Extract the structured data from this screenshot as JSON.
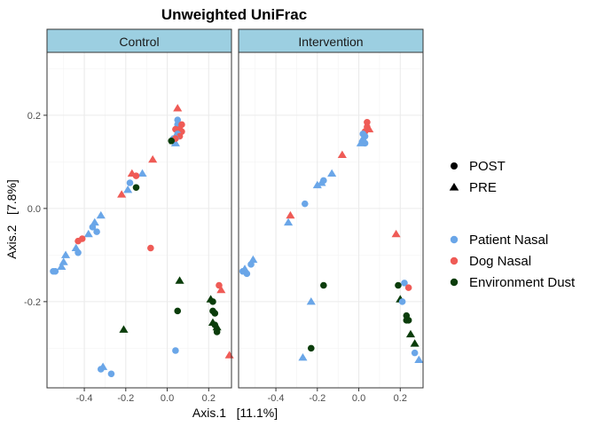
{
  "chart_data": {
    "type": "scatter",
    "title": "Unweighted UniFrac",
    "xlabel": "Axis.1   [11.1%]",
    "ylabel": "Axis.2   [7.8%]",
    "xlim": [
      -0.58,
      0.31
    ],
    "ylim": [
      -0.385,
      0.335
    ],
    "x_ticks": [
      -0.4,
      -0.2,
      0.0,
      0.2
    ],
    "x_tick_labels": [
      "-0.4",
      "-0.2",
      "0.0",
      "0.2"
    ],
    "y_ticks": [
      -0.2,
      0.0,
      0.2
    ],
    "y_tick_labels": [
      "-0.2",
      "0.0",
      "0.2"
    ],
    "grid": true,
    "legend_placement": "right",
    "shape_legend": {
      "items": [
        {
          "label": "POST",
          "shape": "circle"
        },
        {
          "label": "PRE",
          "shape": "triangle"
        }
      ]
    },
    "color_legend": {
      "items": [
        {
          "label": "Patient Nasal",
          "color": "#6aa6e8"
        },
        {
          "label": "Dog Nasal",
          "color": "#ef5b56"
        },
        {
          "label": "Environment Dust",
          "color": "#0b3d0b"
        }
      ]
    },
    "panels": [
      {
        "name": "Control",
        "points": [
          {
            "x": 0.05,
            "y": 0.19,
            "g": "Patient Nasal",
            "s": "POST"
          },
          {
            "x": 0.05,
            "y": 0.18,
            "g": "Patient Nasal",
            "s": "POST"
          },
          {
            "x": 0.07,
            "y": 0.18,
            "g": "Dog Nasal",
            "s": "POST"
          },
          {
            "x": 0.05,
            "y": 0.215,
            "g": "Dog Nasal",
            "s": "PRE"
          },
          {
            "x": 0.06,
            "y": 0.17,
            "g": "Dog Nasal",
            "s": "POST"
          },
          {
            "x": 0.04,
            "y": 0.17,
            "g": "Dog Nasal",
            "s": "POST"
          },
          {
            "x": 0.07,
            "y": 0.165,
            "g": "Dog Nasal",
            "s": "POST"
          },
          {
            "x": 0.05,
            "y": 0.16,
            "g": "Patient Nasal",
            "s": "POST"
          },
          {
            "x": 0.06,
            "y": 0.155,
            "g": "Dog Nasal",
            "s": "POST"
          },
          {
            "x": 0.04,
            "y": 0.155,
            "g": "Patient Nasal",
            "s": "PRE"
          },
          {
            "x": 0.03,
            "y": 0.15,
            "g": "Patient Nasal",
            "s": "POST"
          },
          {
            "x": 0.03,
            "y": 0.145,
            "g": "Environment Dust",
            "s": "PRE"
          },
          {
            "x": 0.04,
            "y": 0.14,
            "g": "Patient Nasal",
            "s": "PRE"
          },
          {
            "x": 0.04,
            "y": 0.15,
            "g": "Dog Nasal",
            "s": "POST"
          },
          {
            "x": 0.02,
            "y": 0.145,
            "g": "Environment Dust",
            "s": "POST"
          },
          {
            "x": -0.07,
            "y": 0.105,
            "g": "Dog Nasal",
            "s": "PRE"
          },
          {
            "x": -0.12,
            "y": 0.075,
            "g": "Patient Nasal",
            "s": "PRE"
          },
          {
            "x": -0.17,
            "y": 0.075,
            "g": "Dog Nasal",
            "s": "PRE"
          },
          {
            "x": -0.15,
            "y": 0.07,
            "g": "Dog Nasal",
            "s": "POST"
          },
          {
            "x": -0.18,
            "y": 0.055,
            "g": "Patient Nasal",
            "s": "POST"
          },
          {
            "x": -0.15,
            "y": 0.045,
            "g": "Environment Dust",
            "s": "POST"
          },
          {
            "x": -0.19,
            "y": 0.04,
            "g": "Patient Nasal",
            "s": "PRE"
          },
          {
            "x": -0.22,
            "y": 0.03,
            "g": "Dog Nasal",
            "s": "PRE"
          },
          {
            "x": -0.32,
            "y": -0.015,
            "g": "Patient Nasal",
            "s": "PRE"
          },
          {
            "x": -0.35,
            "y": -0.03,
            "g": "Patient Nasal",
            "s": "PRE"
          },
          {
            "x": -0.36,
            "y": -0.04,
            "g": "Patient Nasal",
            "s": "POST"
          },
          {
            "x": -0.34,
            "y": -0.05,
            "g": "Patient Nasal",
            "s": "POST"
          },
          {
            "x": -0.38,
            "y": -0.055,
            "g": "Patient Nasal",
            "s": "PRE"
          },
          {
            "x": -0.41,
            "y": -0.065,
            "g": "Dog Nasal",
            "s": "POST"
          },
          {
            "x": -0.43,
            "y": -0.07,
            "g": "Dog Nasal",
            "s": "POST"
          },
          {
            "x": -0.44,
            "y": -0.085,
            "g": "Patient Nasal",
            "s": "PRE"
          },
          {
            "x": -0.43,
            "y": -0.095,
            "g": "Patient Nasal",
            "s": "POST"
          },
          {
            "x": -0.49,
            "y": -0.1,
            "g": "Patient Nasal",
            "s": "PRE"
          },
          {
            "x": -0.5,
            "y": -0.115,
            "g": "Patient Nasal",
            "s": "PRE"
          },
          {
            "x": -0.51,
            "y": -0.125,
            "g": "Patient Nasal",
            "s": "PRE"
          },
          {
            "x": -0.54,
            "y": -0.135,
            "g": "Patient Nasal",
            "s": "POST"
          },
          {
            "x": -0.55,
            "y": -0.135,
            "g": "Patient Nasal",
            "s": "POST"
          },
          {
            "x": -0.08,
            "y": -0.085,
            "g": "Dog Nasal",
            "s": "POST"
          },
          {
            "x": 0.06,
            "y": -0.155,
            "g": "Environment Dust",
            "s": "PRE"
          },
          {
            "x": 0.25,
            "y": -0.165,
            "g": "Dog Nasal",
            "s": "POST"
          },
          {
            "x": 0.26,
            "y": -0.175,
            "g": "Dog Nasal",
            "s": "PRE"
          },
          {
            "x": 0.21,
            "y": -0.195,
            "g": "Environment Dust",
            "s": "PRE"
          },
          {
            "x": 0.22,
            "y": -0.2,
            "g": "Environment Dust",
            "s": "POST"
          },
          {
            "x": 0.05,
            "y": -0.22,
            "g": "Environment Dust",
            "s": "POST"
          },
          {
            "x": 0.22,
            "y": -0.22,
            "g": "Environment Dust",
            "s": "POST"
          },
          {
            "x": 0.23,
            "y": -0.225,
            "g": "Environment Dust",
            "s": "POST"
          },
          {
            "x": 0.22,
            "y": -0.245,
            "g": "Environment Dust",
            "s": "PRE"
          },
          {
            "x": 0.23,
            "y": -0.25,
            "g": "Environment Dust",
            "s": "POST"
          },
          {
            "x": 0.24,
            "y": -0.255,
            "g": "Environment Dust",
            "s": "PRE"
          },
          {
            "x": 0.24,
            "y": -0.265,
            "g": "Environment Dust",
            "s": "POST"
          },
          {
            "x": -0.21,
            "y": -0.26,
            "g": "Environment Dust",
            "s": "PRE"
          },
          {
            "x": 0.04,
            "y": -0.305,
            "g": "Patient Nasal",
            "s": "POST"
          },
          {
            "x": 0.3,
            "y": -0.315,
            "g": "Dog Nasal",
            "s": "PRE"
          },
          {
            "x": -0.31,
            "y": -0.34,
            "g": "Patient Nasal",
            "s": "PRE"
          },
          {
            "x": -0.32,
            "y": -0.345,
            "g": "Patient Nasal",
            "s": "POST"
          },
          {
            "x": -0.27,
            "y": -0.355,
            "g": "Patient Nasal",
            "s": "POST"
          }
        ]
      },
      {
        "name": "Intervention",
        "points": [
          {
            "x": 0.04,
            "y": 0.185,
            "g": "Dog Nasal",
            "s": "POST"
          },
          {
            "x": 0.04,
            "y": 0.175,
            "g": "Dog Nasal",
            "s": "POST"
          },
          {
            "x": 0.05,
            "y": 0.17,
            "g": "Dog Nasal",
            "s": "PRE"
          },
          {
            "x": 0.03,
            "y": 0.165,
            "g": "Dog Nasal",
            "s": "POST"
          },
          {
            "x": 0.02,
            "y": 0.16,
            "g": "Patient Nasal",
            "s": "POST"
          },
          {
            "x": 0.03,
            "y": 0.155,
            "g": "Patient Nasal",
            "s": "POST"
          },
          {
            "x": 0.02,
            "y": 0.15,
            "g": "Patient Nasal",
            "s": "PRE"
          },
          {
            "x": 0.01,
            "y": 0.14,
            "g": "Patient Nasal",
            "s": "PRE"
          },
          {
            "x": 0.03,
            "y": 0.14,
            "g": "Patient Nasal",
            "s": "POST"
          },
          {
            "x": -0.08,
            "y": 0.115,
            "g": "Dog Nasal",
            "s": "PRE"
          },
          {
            "x": -0.13,
            "y": 0.075,
            "g": "Patient Nasal",
            "s": "PRE"
          },
          {
            "x": -0.17,
            "y": 0.06,
            "g": "Patient Nasal",
            "s": "POST"
          },
          {
            "x": -0.18,
            "y": 0.055,
            "g": "Patient Nasal",
            "s": "PRE"
          },
          {
            "x": -0.2,
            "y": 0.05,
            "g": "Patient Nasal",
            "s": "PRE"
          },
          {
            "x": -0.26,
            "y": 0.01,
            "g": "Patient Nasal",
            "s": "POST"
          },
          {
            "x": -0.33,
            "y": -0.015,
            "g": "Dog Nasal",
            "s": "PRE"
          },
          {
            "x": -0.34,
            "y": -0.03,
            "g": "Patient Nasal",
            "s": "PRE"
          },
          {
            "x": 0.18,
            "y": -0.055,
            "g": "Dog Nasal",
            "s": "PRE"
          },
          {
            "x": -0.51,
            "y": -0.11,
            "g": "Patient Nasal",
            "s": "PRE"
          },
          {
            "x": -0.52,
            "y": -0.12,
            "g": "Patient Nasal",
            "s": "POST"
          },
          {
            "x": -0.55,
            "y": -0.13,
            "g": "Patient Nasal",
            "s": "PRE"
          },
          {
            "x": -0.56,
            "y": -0.135,
            "g": "Patient Nasal",
            "s": "POST"
          },
          {
            "x": -0.54,
            "y": -0.14,
            "g": "Patient Nasal",
            "s": "POST"
          },
          {
            "x": 0.22,
            "y": -0.16,
            "g": "Patient Nasal",
            "s": "POST"
          },
          {
            "x": 0.24,
            "y": -0.17,
            "g": "Dog Nasal",
            "s": "POST"
          },
          {
            "x": 0.19,
            "y": -0.165,
            "g": "Environment Dust",
            "s": "POST"
          },
          {
            "x": -0.17,
            "y": -0.165,
            "g": "Environment Dust",
            "s": "POST"
          },
          {
            "x": 0.2,
            "y": -0.195,
            "g": "Environment Dust",
            "s": "PRE"
          },
          {
            "x": -0.23,
            "y": -0.2,
            "g": "Patient Nasal",
            "s": "PRE"
          },
          {
            "x": 0.21,
            "y": -0.2,
            "g": "Patient Nasal",
            "s": "POST"
          },
          {
            "x": 0.23,
            "y": -0.23,
            "g": "Environment Dust",
            "s": "POST"
          },
          {
            "x": 0.23,
            "y": -0.24,
            "g": "Environment Dust",
            "s": "POST"
          },
          {
            "x": 0.24,
            "y": -0.24,
            "g": "Environment Dust",
            "s": "POST"
          },
          {
            "x": 0.25,
            "y": -0.27,
            "g": "Environment Dust",
            "s": "PRE"
          },
          {
            "x": -0.23,
            "y": -0.3,
            "g": "Environment Dust",
            "s": "POST"
          },
          {
            "x": 0.27,
            "y": -0.29,
            "g": "Environment Dust",
            "s": "PRE"
          },
          {
            "x": 0.27,
            "y": -0.31,
            "g": "Patient Nasal",
            "s": "POST"
          },
          {
            "x": -0.27,
            "y": -0.32,
            "g": "Patient Nasal",
            "s": "PRE"
          },
          {
            "x": 0.29,
            "y": -0.325,
            "g": "Patient Nasal",
            "s": "PRE"
          }
        ]
      }
    ]
  }
}
